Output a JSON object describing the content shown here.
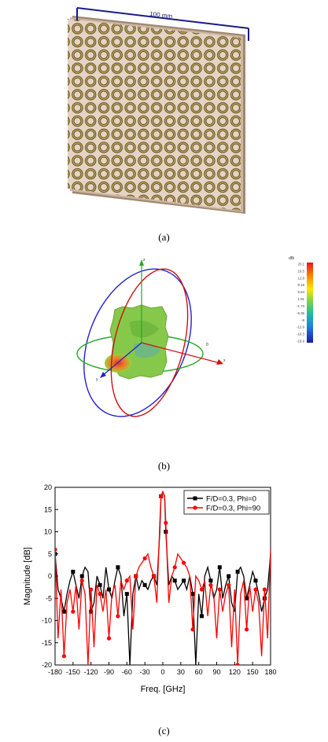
{
  "panel_a": {
    "dimension_label": "100 mm",
    "caption": "(a)"
  },
  "panel_b": {
    "axis_z_label": "z",
    "axis_x_label": "x",
    "axis_y_label": "y",
    "theta_label": "θ",
    "colorbar_unit": "dBi",
    "colorbar_ticks": [
      "20.1",
      "16.5",
      "12.8",
      "9.18",
      "5.54",
      "1.91",
      "-1.73",
      "-5.36",
      "-9",
      "-12.6",
      "-16.3",
      "-19.9"
    ],
    "caption": "(b)"
  },
  "chart_data": {
    "type": "line",
    "xlabel": "Freq. [GHz]",
    "ylabel": "Magnitude [dB]",
    "xlim": [
      -180,
      180
    ],
    "ylim": [
      -20,
      20
    ],
    "xticks": [
      -180,
      -150,
      -120,
      -90,
      -60,
      -30,
      0,
      30,
      60,
      90,
      120,
      150,
      180
    ],
    "yticks": [
      20,
      15,
      10,
      5,
      0,
      -5,
      -10,
      -15,
      -20
    ],
    "legend_position": "top-right",
    "series": [
      {
        "name": "F/D=0.3, Phi=0",
        "color": "#000000",
        "marker": "square",
        "x": [
          -180,
          -175,
          -170,
          -165,
          -160,
          -155,
          -150,
          -145,
          -140,
          -135,
          -130,
          -125,
          -120,
          -115,
          -110,
          -105,
          -100,
          -95,
          -90,
          -85,
          -80,
          -75,
          -70,
          -65,
          -60,
          -55,
          -50,
          -45,
          -40,
          -35,
          -30,
          -25,
          -20,
          -15,
          -10,
          -5,
          -3,
          0,
          3,
          5,
          10,
          15,
          20,
          25,
          30,
          35,
          40,
          45,
          50,
          55,
          60,
          65,
          70,
          75,
          80,
          85,
          90,
          95,
          100,
          105,
          110,
          115,
          120,
          125,
          130,
          135,
          140,
          145,
          150,
          155,
          160,
          165,
          170,
          175,
          180
        ],
        "y": [
          5,
          -3,
          -5,
          -8,
          -4,
          -1,
          1,
          -2,
          -5,
          0,
          2,
          1,
          -8,
          -6,
          0,
          -2,
          -5,
          2,
          -3,
          -5,
          -1,
          2,
          0,
          -9,
          -4,
          -20,
          -4,
          0,
          -3,
          -1,
          -2,
          -3,
          -1,
          0,
          -2,
          10,
          18,
          19,
          18,
          10,
          -2,
          0,
          -1,
          -3,
          -2,
          -1,
          -3,
          0,
          -4,
          -20,
          -4,
          -9,
          0,
          2,
          -1,
          -5,
          -3,
          2,
          -5,
          -2,
          0,
          -6,
          -8,
          1,
          2,
          0,
          -5,
          -2,
          1,
          -1,
          -4,
          -8,
          -5,
          -3,
          5
        ]
      },
      {
        "name": "F/D=0.3, Phi=90",
        "color": "#ff0000",
        "marker": "circle",
        "x": [
          -180,
          -175,
          -170,
          -165,
          -160,
          -155,
          -150,
          -145,
          -140,
          -135,
          -130,
          -125,
          -120,
          -115,
          -110,
          -105,
          -100,
          -95,
          -90,
          -85,
          -80,
          -75,
          -70,
          -65,
          -60,
          -55,
          -50,
          -45,
          -40,
          -35,
          -30,
          -25,
          -20,
          -15,
          -10,
          -5,
          -3,
          0,
          3,
          5,
          10,
          15,
          20,
          25,
          30,
          35,
          40,
          45,
          50,
          55,
          60,
          65,
          70,
          75,
          80,
          85,
          90,
          95,
          100,
          105,
          110,
          115,
          120,
          125,
          130,
          135,
          140,
          145,
          150,
          155,
          160,
          165,
          170,
          175,
          180
        ],
        "y": [
          6,
          -14,
          -3,
          -18,
          -6,
          -3,
          -8,
          -2,
          -12,
          -1,
          -4,
          -20,
          -3,
          -16,
          -2,
          -4,
          -8,
          -3,
          -14,
          -4,
          -2,
          -9,
          -1,
          -3,
          -1,
          0,
          -12,
          0,
          2,
          3,
          4,
          5,
          2,
          0,
          -6,
          12,
          18,
          19,
          18,
          12,
          -6,
          0,
          2,
          5,
          4,
          3,
          2,
          0,
          -12,
          0,
          -1,
          -3,
          -1,
          -9,
          -2,
          -4,
          -14,
          -3,
          -8,
          -4,
          -2,
          -16,
          -3,
          -20,
          -4,
          -1,
          -12,
          -2,
          -8,
          -3,
          -6,
          -18,
          -3,
          -14,
          6
        ]
      }
    ]
  },
  "panel_c": {
    "caption": "(c)"
  }
}
